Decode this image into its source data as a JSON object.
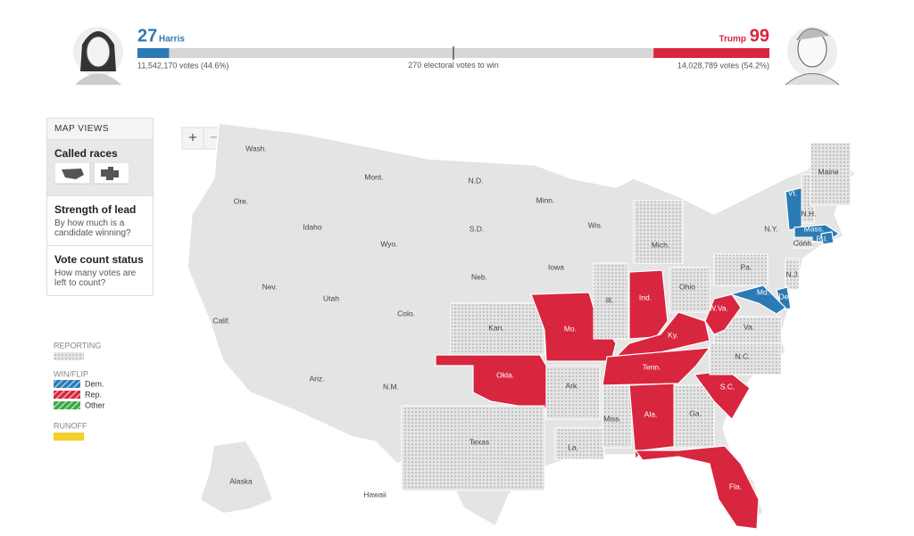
{
  "header": {
    "harris": {
      "electoral_votes": 27,
      "name": "Harris",
      "color": "#2a7ab5",
      "votes_label": "11,542,170 votes (44.6%)"
    },
    "trump": {
      "electoral_votes": 99,
      "name": "Trump",
      "color": "#d8263e",
      "votes_label": "14,028,789 votes (54.2%)"
    },
    "to_win": 270,
    "to_win_label": "electoral votes to win"
  },
  "sidebar": {
    "title": "MAP VIEWS",
    "views": [
      {
        "label": "Called races"
      },
      {
        "label": "Strength of lead",
        "description": "By how much is a candidate winning?"
      },
      {
        "label": "Vote count status",
        "description": "How many votes are left to count?"
      }
    ]
  },
  "legend": {
    "reporting": "REPORTING",
    "win_flip": "WIN/FLIP",
    "items": [
      "Dem.",
      "Rep.",
      "Other"
    ],
    "runoff": "RUNOFF"
  },
  "zoom": {
    "in": "+",
    "out": "−"
  },
  "states": [
    {
      "label": "Wash.",
      "status": "none"
    },
    {
      "label": "Ore.",
      "status": "none"
    },
    {
      "label": "Calif.",
      "status": "none"
    },
    {
      "label": "Nev.",
      "status": "none"
    },
    {
      "label": "Idaho",
      "status": "none"
    },
    {
      "label": "Mont.",
      "status": "none"
    },
    {
      "label": "Wyo.",
      "status": "none"
    },
    {
      "label": "Utah",
      "status": "none"
    },
    {
      "label": "Ariz.",
      "status": "none"
    },
    {
      "label": "Colo.",
      "status": "none"
    },
    {
      "label": "N.M.",
      "status": "none"
    },
    {
      "label": "N.D.",
      "status": "none"
    },
    {
      "label": "S.D.",
      "status": "none"
    },
    {
      "label": "Neb.",
      "status": "none"
    },
    {
      "label": "Kan.",
      "status": "reporting"
    },
    {
      "label": "Okla.",
      "status": "rep"
    },
    {
      "label": "Texas",
      "status": "reporting"
    },
    {
      "label": "Minn.",
      "status": "none"
    },
    {
      "label": "Iowa",
      "status": "none"
    },
    {
      "label": "Mo.",
      "status": "rep"
    },
    {
      "label": "Ark.",
      "status": "reporting"
    },
    {
      "label": "La.",
      "status": "reporting"
    },
    {
      "label": "Wis.",
      "status": "none"
    },
    {
      "label": "Ill.",
      "status": "reporting"
    },
    {
      "label": "Mich.",
      "status": "reporting"
    },
    {
      "label": "Ind.",
      "status": "rep"
    },
    {
      "label": "Ohio",
      "status": "reporting"
    },
    {
      "label": "Ky.",
      "status": "rep"
    },
    {
      "label": "Tenn.",
      "status": "rep"
    },
    {
      "label": "Miss.",
      "status": "reporting"
    },
    {
      "label": "Ala.",
      "status": "rep"
    },
    {
      "label": "Ga.",
      "status": "reporting"
    },
    {
      "label": "Fla.",
      "status": "rep"
    },
    {
      "label": "S.C.",
      "status": "rep"
    },
    {
      "label": "N.C.",
      "status": "reporting"
    },
    {
      "label": "Va.",
      "status": "reporting"
    },
    {
      "label": "W.Va.",
      "status": "rep"
    },
    {
      "label": "Pa.",
      "status": "reporting"
    },
    {
      "label": "N.Y.",
      "status": "none"
    },
    {
      "label": "N.J.",
      "status": "reporting"
    },
    {
      "label": "Del.",
      "status": "dem"
    },
    {
      "label": "Md.",
      "status": "dem"
    },
    {
      "label": "Vt.",
      "status": "dem"
    },
    {
      "label": "N.H.",
      "status": "reporting"
    },
    {
      "label": "Mass.",
      "status": "dem"
    },
    {
      "label": "R.I.",
      "status": "dem"
    },
    {
      "label": "Conn.",
      "status": "reporting"
    },
    {
      "label": "Maine",
      "status": "reporting"
    },
    {
      "label": "Alaska",
      "status": "none"
    },
    {
      "label": "Hawaii",
      "status": "none"
    }
  ]
}
